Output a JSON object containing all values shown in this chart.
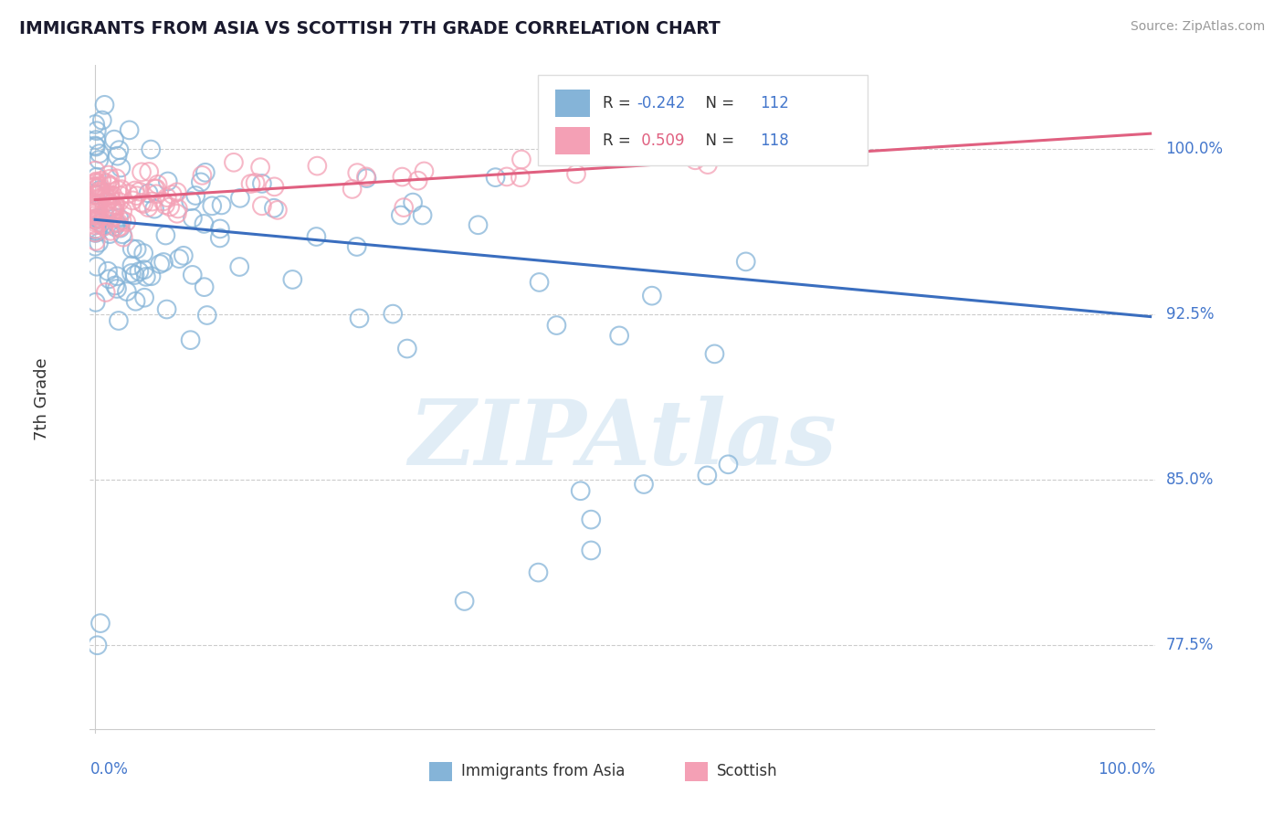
{
  "title": "IMMIGRANTS FROM ASIA VS SCOTTISH 7TH GRADE CORRELATION CHART",
  "source_text": "Source: ZipAtlas.com",
  "ylabel": "7th Grade",
  "ytick_labels": [
    "77.5%",
    "85.0%",
    "92.5%",
    "100.0%"
  ],
  "ytick_values": [
    0.775,
    0.85,
    0.925,
    1.0
  ],
  "R_blue": -0.242,
  "N_blue": 112,
  "R_pink": 0.509,
  "N_pink": 118,
  "blue_color": "#85B4D8",
  "pink_color": "#F4A0B5",
  "trend_blue_color": "#3A6EBF",
  "trend_pink_color": "#E06080",
  "watermark_color": "#C5DDEF",
  "title_color": "#1a1a2e",
  "axis_color": "#4477CC",
  "background_color": "#FFFFFF",
  "ylim_min": 0.735,
  "ylim_max": 1.038,
  "xlim_min": -0.005,
  "xlim_max": 1.005,
  "blue_trend_x0": 0.0,
  "blue_trend_y0": 0.968,
  "blue_trend_x1": 1.0,
  "blue_trend_y1": 0.924,
  "pink_trend_x0": 0.0,
  "pink_trend_y0": 0.977,
  "pink_trend_x1": 1.0,
  "pink_trend_y1": 1.007,
  "grid_color": "#CCCCCC",
  "grid_linestyle": "--",
  "grid_linewidth": 0.8
}
